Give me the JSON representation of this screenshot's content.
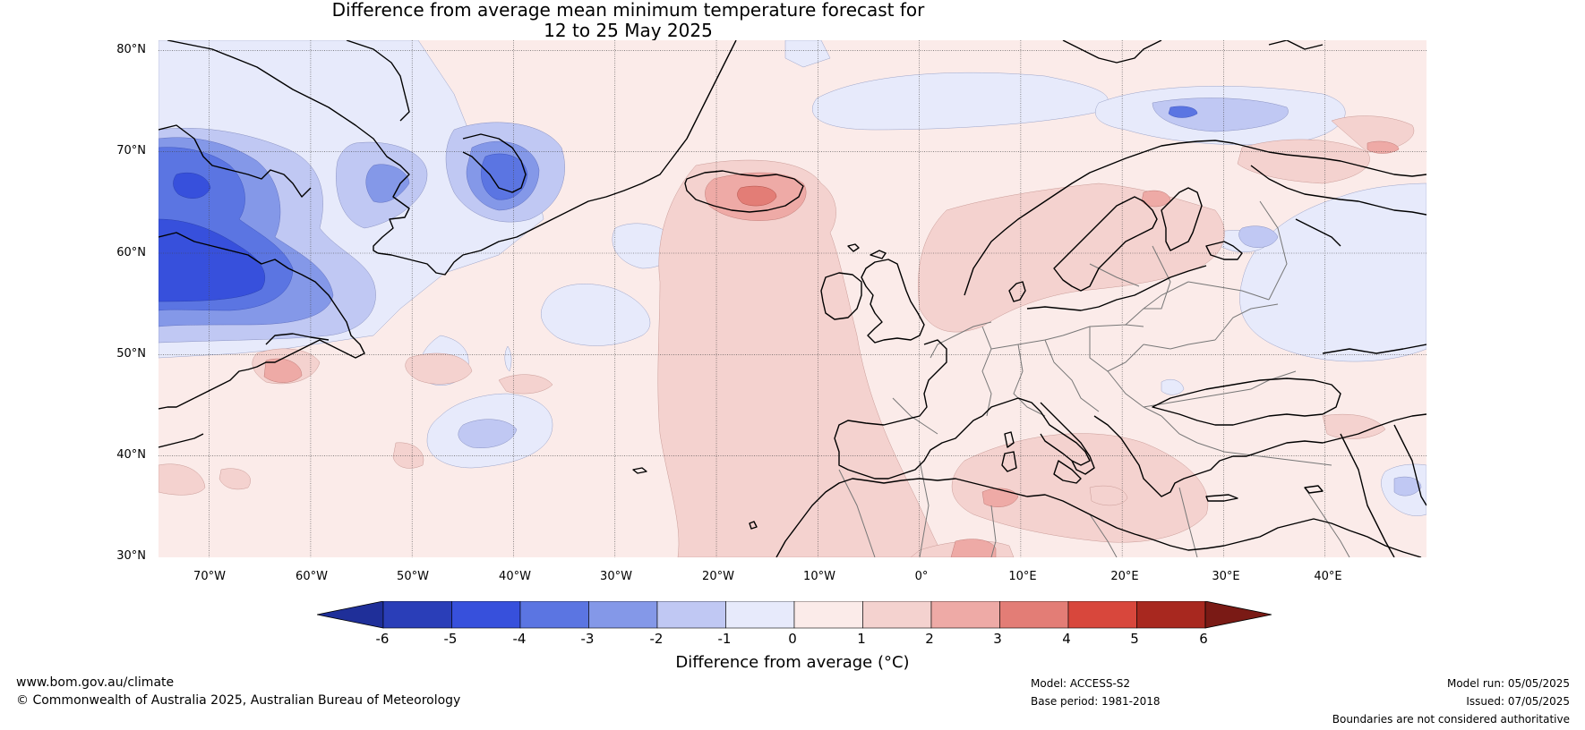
{
  "title": {
    "line1": "Difference from average mean minimum temperature forecast for",
    "line2": "12 to 25 May 2025"
  },
  "map": {
    "region": "North Atlantic and Europe",
    "projection": "equirectangular",
    "lon_range": [
      -75,
      50
    ],
    "lat_range": [
      30,
      81
    ],
    "gridlines": true,
    "lat_labels": [
      "80°N",
      "70°N",
      "60°N",
      "50°N",
      "40°N",
      "30°N"
    ],
    "lon_labels": [
      "70°W",
      "60°W",
      "50°W",
      "40°W",
      "30°W",
      "20°W",
      "10°W",
      "0°",
      "10°E",
      "20°E",
      "30°E",
      "40°E"
    ],
    "ocean_base_color": "#fbebe9",
    "land_outline_color": "#000000",
    "country_border_color": "#777777"
  },
  "colorbar": {
    "ticks": [
      "-6",
      "-5",
      "-4",
      "-3",
      "-2",
      "-1",
      "0",
      "1",
      "2",
      "3",
      "4",
      "5",
      "6"
    ],
    "colors": [
      "#1f2f99",
      "#2a3eb8",
      "#3750dc",
      "#5b75e2",
      "#8498e8",
      "#c0c8f3",
      "#e7eafb",
      "#fbebe9",
      "#f4d2cf",
      "#eeaaa6",
      "#e37d76",
      "#d8473c",
      "#a8281f",
      "#7a1a15"
    ],
    "label": "Difference from average (°C)"
  },
  "footer": {
    "url": "www.bom.gov.au/climate",
    "copyright": "© Commonwealth of Australia 2025, Australian Bureau of Meteorology",
    "model": "Model: ACCESS-S2",
    "base_period": "Base period: 1981-2018",
    "model_run": "Model run: 05/05/2025",
    "issued": "Issued: 07/05/2025",
    "disclaimer": "Boundaries are not considered authoritative"
  }
}
